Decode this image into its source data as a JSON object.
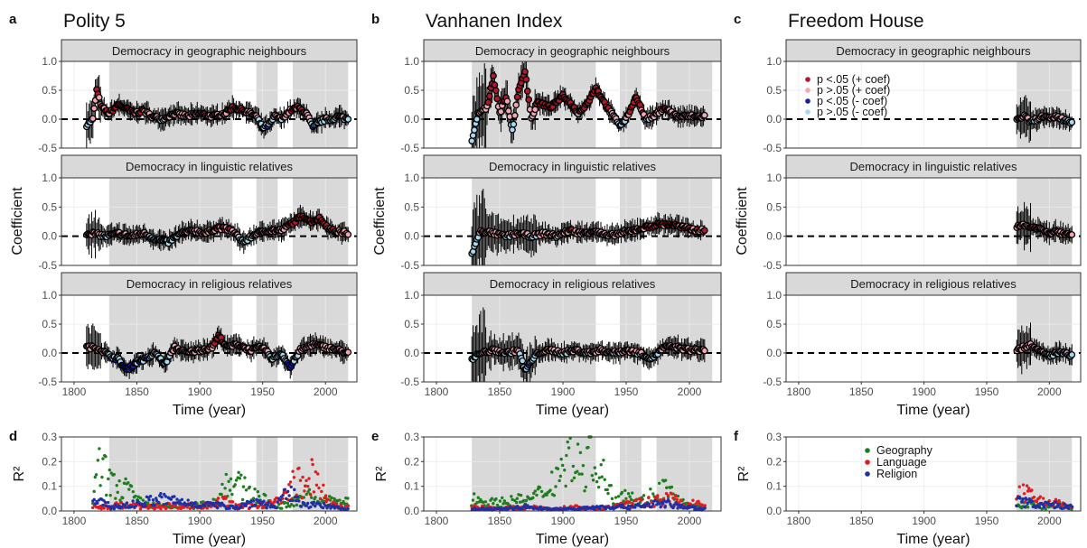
{
  "chart_data": [
    {
      "panel": "a",
      "title": "Polity 5",
      "type": "line",
      "xlabel": "Time (year)",
      "ylabel": "Coefficient",
      "xlim": [
        1790,
        2025
      ],
      "ylim": [
        -0.5,
        1.0
      ],
      "xticks": [
        1800,
        1850,
        1900,
        1950,
        2000
      ],
      "yticks": [
        "-0.5",
        "0.0",
        "0.5",
        "1.0"
      ],
      "data_range": [
        1810,
        2018
      ],
      "shaded_periods": [
        [
          1828,
          1926
        ],
        [
          1945,
          1962
        ],
        [
          1974,
          2018
        ]
      ],
      "facets": [
        {
          "label": "Democracy in geographic neighbours",
          "series": [
            {
              "x": [
                1810,
                1815,
                1818,
                1822,
                1828,
                1835,
                1840,
                1848,
                1855,
                1862,
                1870,
                1880,
                1890,
                1900,
                1910,
                1920,
                1926,
                1935,
                1945,
                1950,
                1955,
                1960,
                1965,
                1972,
                1978,
                1985,
                1990,
                1995,
                2000,
                2005,
                2010,
                2018
              ],
              "y": [
                -0.1,
                0.0,
                0.5,
                0.2,
                0.1,
                0.25,
                0.2,
                0.1,
                0.15,
                0.05,
                0.0,
                0.1,
                0.05,
                0.1,
                0.05,
                0.1,
                0.2,
                0.15,
                0.05,
                -0.15,
                -0.1,
                0.05,
                0.0,
                0.15,
                0.2,
                0.1,
                -0.15,
                -0.05,
                0.0,
                0.0,
                0.05,
                0.0
              ]
            }
          ]
        },
        {
          "label": "Democracy in linguistic relatives",
          "series": [
            {
              "x": [
                1815,
                1825,
                1835,
                1845,
                1855,
                1865,
                1875,
                1885,
                1895,
                1905,
                1915,
                1925,
                1935,
                1945,
                1955,
                1965,
                1975,
                1982,
                1988,
                1995,
                2005,
                2018
              ],
              "y": [
                0.05,
                0.0,
                0.05,
                0.0,
                0.05,
                -0.05,
                -0.1,
                0.05,
                0.1,
                0.05,
                0.15,
                0.1,
                -0.1,
                0.05,
                0.1,
                0.1,
                0.25,
                0.35,
                0.25,
                0.3,
                0.1,
                0.05
              ]
            }
          ]
        },
        {
          "label": "Democracy in religious relatives",
          "series": [
            {
              "x": [
                1815,
                1822,
                1828,
                1835,
                1842,
                1850,
                1858,
                1865,
                1872,
                1880,
                1890,
                1900,
                1910,
                1915,
                1922,
                1930,
                1940,
                1950,
                1958,
                1965,
                1972,
                1980,
                1990,
                2000,
                2010,
                2018
              ],
              "y": [
                0.1,
                0.05,
                -0.05,
                -0.1,
                -0.3,
                -0.15,
                -0.1,
                0.0,
                -0.2,
                0.1,
                0.0,
                0.05,
                0.1,
                0.3,
                0.1,
                0.15,
                0.05,
                0.1,
                -0.1,
                0.0,
                -0.25,
                0.05,
                0.15,
                0.1,
                0.05,
                0.0
              ]
            }
          ]
        }
      ]
    },
    {
      "panel": "b",
      "title": "Vanhanen Index",
      "type": "line",
      "xlabel": "Time (year)",
      "ylabel": "Coefficient",
      "xlim": [
        1790,
        2025
      ],
      "ylim": [
        -0.5,
        1.0
      ],
      "xticks": [
        1800,
        1850,
        1900,
        1950,
        2000
      ],
      "yticks": [
        "-0.5",
        "0.0",
        "0.5",
        "1.0"
      ],
      "data_range": [
        1828,
        2012
      ],
      "shaded_periods": [
        [
          1828,
          1926
        ],
        [
          1945,
          1962
        ],
        [
          1974,
          2018
        ]
      ],
      "facets": [
        {
          "label": "Democracy in geographic neighbours",
          "series": [
            {
              "x": [
                1828,
                1833,
                1840,
                1845,
                1850,
                1855,
                1860,
                1865,
                1870,
                1875,
                1880,
                1890,
                1900,
                1905,
                1912,
                1920,
                1926,
                1935,
                1945,
                1950,
                1958,
                1965,
                1972,
                1980,
                1990,
                2000,
                2012
              ],
              "y": [
                -0.4,
                0.1,
                0.2,
                0.75,
                0.1,
                0.4,
                -0.2,
                0.5,
                0.85,
                0.0,
                0.3,
                0.2,
                0.4,
                0.3,
                0.1,
                0.3,
                0.55,
                0.2,
                -0.1,
                0.0,
                0.4,
                0.0,
                0.05,
                0.2,
                0.05,
                0.05,
                0.05
              ]
            }
          ]
        },
        {
          "label": "Democracy in linguistic relatives",
          "series": [
            {
              "x": [
                1828,
                1835,
                1845,
                1855,
                1865,
                1875,
                1885,
                1895,
                1905,
                1915,
                1925,
                1935,
                1945,
                1955,
                1965,
                1975,
                1985,
                1995,
                2005,
                2012
              ],
              "y": [
                -0.3,
                0.1,
                0.05,
                0.0,
                0.05,
                0.0,
                0.05,
                0.0,
                0.1,
                0.05,
                0.1,
                0.0,
                0.05,
                0.1,
                0.15,
                0.2,
                0.2,
                0.15,
                0.1,
                0.1
              ]
            }
          ]
        },
        {
          "label": "Democracy in religious relatives",
          "series": [
            {
              "x": [
                1828,
                1835,
                1845,
                1855,
                1865,
                1870,
                1880,
                1890,
                1900,
                1910,
                1920,
                1930,
                1940,
                1950,
                1960,
                1970,
                1980,
                1990,
                2000,
                2012
              ],
              "y": [
                -0.1,
                0.0,
                0.05,
                0.0,
                0.05,
                -0.3,
                0.0,
                0.05,
                0.0,
                0.05,
                0.0,
                0.05,
                0.0,
                0.05,
                0.0,
                -0.1,
                0.1,
                0.1,
                0.05,
                0.05
              ]
            }
          ]
        }
      ]
    },
    {
      "panel": "c",
      "title": "Freedom House",
      "type": "line",
      "xlabel": "Time (year)",
      "ylabel": "Coefficient",
      "xlim": [
        1790,
        2025
      ],
      "ylim": [
        -0.5,
        1.0
      ],
      "xticks": [
        1800,
        1850,
        1900,
        1950,
        2000
      ],
      "yticks": [
        "-0.5",
        "0.0",
        "0.5",
        "1.0"
      ],
      "data_range": [
        1974,
        2018
      ],
      "shaded_periods": [
        [
          1974,
          2018
        ]
      ],
      "legend": {
        "placement": "top-left",
        "entries": [
          {
            "label": "p <.05 (+ coef)",
            "color": "#b2182b"
          },
          {
            "label": "p >.05 (+ coef)",
            "color": "#f4a6b3"
          },
          {
            "label": "p <.05 (- coef)",
            "color": "#1a1aa6"
          },
          {
            "label": "p >.05 (- coef)",
            "color": "#a6d8ee"
          }
        ]
      },
      "facets": [
        {
          "label": "Democracy in geographic neighbours",
          "series": [
            {
              "x": [
                1974,
                1980,
                1985,
                1990,
                1995,
                2000,
                2005,
                2010,
                2018
              ],
              "y": [
                0.0,
                0.05,
                -0.05,
                0.0,
                0.05,
                0.0,
                0.05,
                0.0,
                -0.05
              ]
            }
          ]
        },
        {
          "label": "Democracy in linguistic relatives",
          "series": [
            {
              "x": [
                1974,
                1980,
                1985,
                1990,
                1995,
                2000,
                2005,
                2010,
                2018
              ],
              "y": [
                0.15,
                0.2,
                0.15,
                0.15,
                0.1,
                0.05,
                0.1,
                0.05,
                0.05
              ]
            }
          ]
        },
        {
          "label": "Democracy in religious relatives",
          "series": [
            {
              "x": [
                1974,
                1980,
                1985,
                1990,
                1995,
                2000,
                2005,
                2010,
                2018
              ],
              "y": [
                0.05,
                0.1,
                0.15,
                0.05,
                0.0,
                -0.05,
                0.0,
                0.0,
                -0.05
              ]
            }
          ]
        }
      ]
    },
    {
      "panel": "d",
      "type": "scatter",
      "xlabel": "Time (year)",
      "ylabel": "R²",
      "xlim": [
        1790,
        2025
      ],
      "ylim": [
        0,
        0.3
      ],
      "xticks": [
        1800,
        1850,
        1900,
        1950,
        2000
      ],
      "yticks": [
        "0.0",
        "0.1",
        "0.2",
        "0.3"
      ],
      "data_range": [
        1815,
        2018
      ],
      "shaded_periods": [
        [
          1828,
          1926
        ],
        [
          1945,
          1962
        ],
        [
          1974,
          2018
        ]
      ],
      "series": [
        {
          "name": "Geography",
          "color": "#1e7d1e",
          "x": [
            1815,
            1820,
            1835,
            1840,
            1850,
            1860,
            1880,
            1900,
            1915,
            1920,
            1922,
            1950,
            1960,
            1978,
            1985,
            1990
          ],
          "y": [
            0.05,
            0.22,
            0.1,
            0.13,
            0.05,
            0.03,
            0.02,
            0.03,
            0.05,
            0.15,
            0.16,
            0.06,
            0.02,
            0.05,
            0.09,
            0.05
          ]
        },
        {
          "name": "Language",
          "color": "#e41a1c",
          "x": [
            1825,
            1835,
            1860,
            1880,
            1900,
            1920,
            1930,
            1960,
            1970,
            1975,
            1980,
            1985,
            1990,
            1995,
            2000,
            2010
          ],
          "y": [
            0.02,
            0.03,
            0.02,
            0.03,
            0.02,
            0.05,
            0.02,
            0.04,
            0.08,
            0.16,
            0.14,
            0.1,
            0.2,
            0.15,
            0.05,
            0.02
          ]
        },
        {
          "name": "Religion",
          "color": "#1f2fa8",
          "x": [
            1815,
            1818,
            1830,
            1845,
            1860,
            1870,
            1890,
            1910,
            1930,
            1945,
            1960,
            1965,
            1972,
            1978,
            1990,
            2005,
            2015
          ],
          "y": [
            0.05,
            0.05,
            0.02,
            0.03,
            0.05,
            0.06,
            0.04,
            0.03,
            0.02,
            0.05,
            0.02,
            0.06,
            0.09,
            0.05,
            0.03,
            0.02,
            0.01
          ]
        }
      ]
    },
    {
      "panel": "e",
      "type": "scatter",
      "xlabel": "Time (year)",
      "ylabel": "R²",
      "xlim": [
        1790,
        2025
      ],
      "ylim": [
        0,
        0.3
      ],
      "xticks": [
        1800,
        1850,
        1900,
        1950,
        2000
      ],
      "yticks": [
        "0.0",
        "0.1",
        "0.2",
        "0.3"
      ],
      "data_range": [
        1828,
        2012
      ],
      "shaded_periods": [
        [
          1828,
          1926
        ],
        [
          1945,
          1962
        ],
        [
          1974,
          2018
        ]
      ],
      "series": [
        {
          "name": "Geography",
          "color": "#1e7d1e",
          "x": [
            1830,
            1845,
            1860,
            1875,
            1885,
            1890,
            1895,
            1900,
            1905,
            1910,
            1915,
            1920,
            1925,
            1930,
            1940,
            1950,
            1960,
            1980,
            1990,
            2000
          ],
          "y": [
            0.06,
            0.04,
            0.05,
            0.06,
            0.1,
            0.14,
            0.18,
            0.22,
            0.28,
            0.25,
            0.2,
            0.28,
            0.3,
            0.2,
            0.06,
            0.1,
            0.04,
            0.12,
            0.06,
            0.02
          ]
        },
        {
          "name": "Language",
          "color": "#e41a1c",
          "x": [
            1830,
            1850,
            1870,
            1890,
            1910,
            1930,
            1945,
            1960,
            1975,
            1985,
            1995,
            2005,
            2012
          ],
          "y": [
            0.02,
            0.01,
            0.02,
            0.01,
            0.02,
            0.01,
            0.03,
            0.04,
            0.05,
            0.06,
            0.03,
            0.04,
            0.03
          ]
        },
        {
          "name": "Religion",
          "color": "#1f2fa8",
          "x": [
            1830,
            1850,
            1870,
            1890,
            1910,
            1930,
            1950,
            1965,
            1980,
            1995,
            2010
          ],
          "y": [
            0.01,
            0.01,
            0.02,
            0.01,
            0.01,
            0.02,
            0.02,
            0.03,
            0.04,
            0.02,
            0.01
          ]
        }
      ]
    },
    {
      "panel": "f",
      "type": "scatter",
      "xlabel": "Time (year)",
      "ylabel": "R²",
      "xlim": [
        1790,
        2025
      ],
      "ylim": [
        0,
        0.3
      ],
      "xticks": [
        1800,
        1850,
        1900,
        1950,
        2000
      ],
      "yticks": [
        "0.0",
        "0.1",
        "0.2",
        "0.3"
      ],
      "data_range": [
        1974,
        2018
      ],
      "shaded_periods": [
        [
          1974,
          2018
        ]
      ],
      "legend": {
        "placement": "top-center",
        "entries": [
          {
            "label": "Geography",
            "color": "#1e7d1e"
          },
          {
            "label": "Language",
            "color": "#e41a1c"
          },
          {
            "label": "Religion",
            "color": "#1f2fa8"
          }
        ]
      },
      "series": [
        {
          "name": "Geography",
          "color": "#1e7d1e",
          "x": [
            1976,
            1985,
            1995,
            2005,
            2015
          ],
          "y": [
            0.03,
            0.04,
            0.02,
            0.03,
            0.02
          ]
        },
        {
          "name": "Language",
          "color": "#e41a1c",
          "x": [
            1976,
            1980,
            1985,
            1990,
            1995,
            2000,
            2005,
            2010,
            2015
          ],
          "y": [
            0.08,
            0.1,
            0.07,
            0.06,
            0.05,
            0.04,
            0.05,
            0.03,
            0.02
          ]
        },
        {
          "name": "Religion",
          "color": "#1f2fa8",
          "x": [
            1976,
            1985,
            1995,
            2005,
            2015
          ],
          "y": [
            0.05,
            0.04,
            0.03,
            0.03,
            0.02
          ]
        }
      ]
    }
  ],
  "colors": {
    "sig_pos": "#b2182b",
    "nonsig_pos": "#f4a6b3",
    "sig_neg": "#1a1aa6",
    "nonsig_neg": "#a6d8ee",
    "shade": "#d9d9d9",
    "strip": "#d9d9d9"
  }
}
